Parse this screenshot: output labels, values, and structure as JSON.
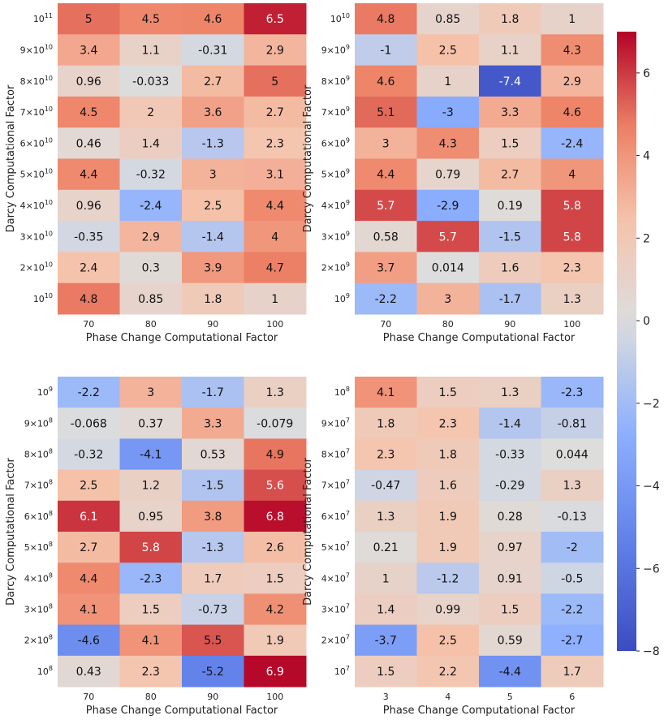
{
  "colorbar": {
    "vmin": -8,
    "vmax": 7,
    "ticks": [
      -8,
      -6,
      -4,
      -2,
      0,
      2,
      4,
      6
    ],
    "tick_labels": [
      "−8",
      "−6",
      "−4",
      "−2",
      "0",
      "2",
      "4",
      "6"
    ],
    "colors": {
      "low": "#3b4cc0",
      "mid": "#dddddd",
      "high": "#b40426"
    }
  },
  "chart_data": [
    {
      "type": "heatmap",
      "position": "top-left",
      "xlabel": "Phase Change Computational Factor",
      "ylabel": "Darcy Computational Factor",
      "x_tick_labels": [
        "70",
        "80",
        "90",
        "100"
      ],
      "y_tick_labels": [
        {
          "base": "10",
          "exp": "11"
        },
        {
          "mant": "9",
          "base": "10",
          "exp": "10"
        },
        {
          "mant": "8",
          "base": "10",
          "exp": "10"
        },
        {
          "mant": "7",
          "base": "10",
          "exp": "10"
        },
        {
          "mant": "6",
          "base": "10",
          "exp": "10"
        },
        {
          "mant": "5",
          "base": "10",
          "exp": "10"
        },
        {
          "mant": "4",
          "base": "10",
          "exp": "10"
        },
        {
          "mant": "3",
          "base": "10",
          "exp": "10"
        },
        {
          "mant": "2",
          "base": "10",
          "exp": "10"
        },
        {
          "base": "10",
          "exp": "10"
        }
      ],
      "values": [
        [
          5,
          4.5,
          4.6,
          6.5
        ],
        [
          3.4,
          1.1,
          -0.31,
          2.9
        ],
        [
          0.96,
          -0.033,
          2.7,
          5
        ],
        [
          4.5,
          2,
          3.6,
          2.7
        ],
        [
          0.46,
          1.4,
          -1.3,
          2.3
        ],
        [
          4.4,
          -0.32,
          3,
          3.1
        ],
        [
          0.96,
          -2.4,
          2.5,
          4.4
        ],
        [
          -0.35,
          2.9,
          -1.4,
          4
        ],
        [
          2.4,
          0.3,
          3.9,
          4.7
        ],
        [
          4.8,
          0.85,
          1.8,
          1
        ]
      ],
      "labels": [
        [
          "5",
          "4.5",
          "4.6",
          "6.5"
        ],
        [
          "3.4",
          "1.1",
          "-0.31",
          "2.9"
        ],
        [
          "0.96",
          "-0.033",
          "2.7",
          "5"
        ],
        [
          "4.5",
          "2",
          "3.6",
          "2.7"
        ],
        [
          "0.46",
          "1.4",
          "-1.3",
          "2.3"
        ],
        [
          "4.4",
          "-0.32",
          "3",
          "3.1"
        ],
        [
          "0.96",
          "-2.4",
          "2.5",
          "4.4"
        ],
        [
          "-0.35",
          "2.9",
          "-1.4",
          "4"
        ],
        [
          "2.4",
          "0.3",
          "3.9",
          "4.7"
        ],
        [
          "4.8",
          "0.85",
          "1.8",
          "1"
        ]
      ]
    },
    {
      "type": "heatmap",
      "position": "top-right",
      "xlabel": "Phase Change Computational Factor",
      "ylabel": "Darcy Computational Factor",
      "x_tick_labels": [
        "70",
        "80",
        "90",
        "100"
      ],
      "y_tick_labels": [
        {
          "base": "10",
          "exp": "10"
        },
        {
          "mant": "9",
          "base": "10",
          "exp": "9"
        },
        {
          "mant": "8",
          "base": "10",
          "exp": "9"
        },
        {
          "mant": "7",
          "base": "10",
          "exp": "9"
        },
        {
          "mant": "6",
          "base": "10",
          "exp": "9"
        },
        {
          "mant": "5",
          "base": "10",
          "exp": "9"
        },
        {
          "mant": "4",
          "base": "10",
          "exp": "9"
        },
        {
          "mant": "3",
          "base": "10",
          "exp": "9"
        },
        {
          "mant": "2",
          "base": "10",
          "exp": "9"
        },
        {
          "base": "10",
          "exp": "9"
        }
      ],
      "values": [
        [
          4.8,
          0.85,
          1.8,
          1
        ],
        [
          -1,
          2.5,
          1.1,
          4.3
        ],
        [
          4.6,
          1,
          -7.4,
          2.9
        ],
        [
          5.1,
          -3,
          3.3,
          4.6
        ],
        [
          3,
          4.3,
          1.5,
          -2.4
        ],
        [
          4.4,
          0.79,
          2.7,
          4
        ],
        [
          5.7,
          -2.9,
          0.19,
          5.8
        ],
        [
          0.58,
          5.7,
          -1.5,
          5.8
        ],
        [
          3.7,
          0.014,
          1.6,
          2.3
        ],
        [
          -2.2,
          3,
          -1.7,
          1.3
        ]
      ],
      "labels": [
        [
          "4.8",
          "0.85",
          "1.8",
          "1"
        ],
        [
          "-1",
          "2.5",
          "1.1",
          "4.3"
        ],
        [
          "4.6",
          "1",
          "-7.4",
          "2.9"
        ],
        [
          "5.1",
          "-3",
          "3.3",
          "4.6"
        ],
        [
          "3",
          "4.3",
          "1.5",
          "-2.4"
        ],
        [
          "4.4",
          "0.79",
          "2.7",
          "4"
        ],
        [
          "5.7",
          "-2.9",
          "0.19",
          "5.8"
        ],
        [
          "0.58",
          "5.7",
          "-1.5",
          "5.8"
        ],
        [
          "3.7",
          "0.014",
          "1.6",
          "2.3"
        ],
        [
          "-2.2",
          "3",
          "-1.7",
          "1.3"
        ]
      ]
    },
    {
      "type": "heatmap",
      "position": "bottom-left",
      "xlabel": "Phase Change Computational Factor",
      "ylabel": "Darcy Computational Factor",
      "x_tick_labels": [
        "70",
        "80",
        "90",
        "100"
      ],
      "y_tick_labels": [
        {
          "base": "10",
          "exp": "9"
        },
        {
          "mant": "9",
          "base": "10",
          "exp": "8"
        },
        {
          "mant": "8",
          "base": "10",
          "exp": "8"
        },
        {
          "mant": "7",
          "base": "10",
          "exp": "8"
        },
        {
          "mant": "6",
          "base": "10",
          "exp": "8"
        },
        {
          "mant": "5",
          "base": "10",
          "exp": "8"
        },
        {
          "mant": "4",
          "base": "10",
          "exp": "8"
        },
        {
          "mant": "3",
          "base": "10",
          "exp": "8"
        },
        {
          "mant": "2",
          "base": "10",
          "exp": "8"
        },
        {
          "base": "10",
          "exp": "8"
        }
      ],
      "values": [
        [
          -2.2,
          3,
          -1.7,
          1.3
        ],
        [
          -0.068,
          0.37,
          3.3,
          -0.079
        ],
        [
          -0.32,
          -4.1,
          0.53,
          4.9
        ],
        [
          2.5,
          1.2,
          -1.5,
          5.6
        ],
        [
          6.1,
          0.95,
          3.8,
          6.8
        ],
        [
          2.7,
          5.8,
          -1.3,
          2.6
        ],
        [
          4.4,
          -2.3,
          1.7,
          1.5
        ],
        [
          4.1,
          1.5,
          -0.73,
          4.2
        ],
        [
          -4.6,
          4.1,
          5.5,
          1.9
        ],
        [
          0.43,
          2.3,
          -5.2,
          6.9
        ]
      ],
      "labels": [
        [
          "-2.2",
          "3",
          "-1.7",
          "1.3"
        ],
        [
          "-0.068",
          "0.37",
          "3.3",
          "-0.079"
        ],
        [
          "-0.32",
          "-4.1",
          "0.53",
          "4.9"
        ],
        [
          "2.5",
          "1.2",
          "-1.5",
          "5.6"
        ],
        [
          "6.1",
          "0.95",
          "3.8",
          "6.8"
        ],
        [
          "2.7",
          "5.8",
          "-1.3",
          "2.6"
        ],
        [
          "4.4",
          "-2.3",
          "1.7",
          "1.5"
        ],
        [
          "4.1",
          "1.5",
          "-0.73",
          "4.2"
        ],
        [
          "-4.6",
          "4.1",
          "5.5",
          "1.9"
        ],
        [
          "0.43",
          "2.3",
          "-5.2",
          "6.9"
        ]
      ]
    },
    {
      "type": "heatmap",
      "position": "bottom-right",
      "xlabel": "Phase Change Computational Factor",
      "ylabel": "Darcy Computational Factor",
      "x_tick_labels": [
        "3",
        "4",
        "5",
        "6"
      ],
      "y_tick_labels": [
        {
          "base": "10",
          "exp": "8"
        },
        {
          "mant": "9",
          "base": "10",
          "exp": "7"
        },
        {
          "mant": "8",
          "base": "10",
          "exp": "7"
        },
        {
          "mant": "7",
          "base": "10",
          "exp": "7"
        },
        {
          "mant": "6",
          "base": "10",
          "exp": "7"
        },
        {
          "mant": "5",
          "base": "10",
          "exp": "7"
        },
        {
          "mant": "4",
          "base": "10",
          "exp": "7"
        },
        {
          "mant": "3",
          "base": "10",
          "exp": "7"
        },
        {
          "mant": "2",
          "base": "10",
          "exp": "7"
        },
        {
          "base": "10",
          "exp": "7"
        }
      ],
      "values": [
        [
          4.1,
          1.5,
          1.3,
          -2.3
        ],
        [
          1.8,
          2.3,
          -1.4,
          -0.81
        ],
        [
          2.3,
          1.8,
          -0.33,
          0.044
        ],
        [
          -0.47,
          1.6,
          -0.29,
          1.3
        ],
        [
          1.3,
          1.9,
          0.28,
          -0.13
        ],
        [
          0.21,
          1.9,
          0.97,
          -2
        ],
        [
          1,
          -1.2,
          0.91,
          -0.5
        ],
        [
          1.4,
          0.99,
          1.5,
          -2.2
        ],
        [
          -3.7,
          2.5,
          0.59,
          -2.7
        ],
        [
          1.5,
          2.2,
          -4.4,
          1.7
        ]
      ],
      "labels": [
        [
          "4.1",
          "1.5",
          "1.3",
          "-2.3"
        ],
        [
          "1.8",
          "2.3",
          "-1.4",
          "-0.81"
        ],
        [
          "2.3",
          "1.8",
          "-0.33",
          "0.044"
        ],
        [
          "-0.47",
          "1.6",
          "-0.29",
          "1.3"
        ],
        [
          "1.3",
          "1.9",
          "0.28",
          "-0.13"
        ],
        [
          "0.21",
          "1.9",
          "0.97",
          "-2"
        ],
        [
          "1",
          "-1.2",
          "0.91",
          "-0.5"
        ],
        [
          "1.4",
          "0.99",
          "1.5",
          "-2.2"
        ],
        [
          "-3.7",
          "2.5",
          "0.59",
          "-2.7"
        ],
        [
          "1.5",
          "2.2",
          "-4.4",
          "1.7"
        ]
      ]
    }
  ]
}
